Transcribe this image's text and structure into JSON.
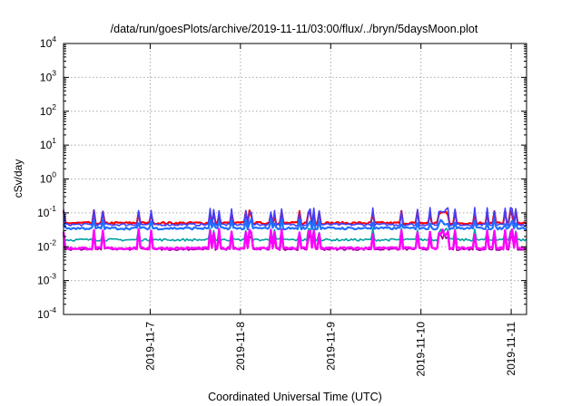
{
  "chart_data": {
    "type": "line",
    "title": "/data/run/goesPlots/archive/2019-11-11/03:00/flux/../bryn/5daysMoon.plot",
    "xlabel": "Coordinated Universal Time (UTC)",
    "ylabel": "cSv/day",
    "yscale": "log",
    "ylim_exp": [
      -4,
      4
    ],
    "y_ticks": [
      {
        "base": "10",
        "exp": "4"
      },
      {
        "base": "10",
        "exp": "3"
      },
      {
        "base": "10",
        "exp": "2"
      },
      {
        "base": "10",
        "exp": "1"
      },
      {
        "base": "10",
        "exp": "0"
      },
      {
        "base": "10",
        "exp": "-1"
      },
      {
        "base": "10",
        "exp": "-2"
      },
      {
        "base": "10",
        "exp": "-3"
      },
      {
        "base": "10",
        "exp": "-4"
      }
    ],
    "xlim_days": [
      6.04,
      11.17
    ],
    "x_ticks": [
      {
        "label": "2019-11-7",
        "day": 7
      },
      {
        "label": "2019-11-8",
        "day": 8
      },
      {
        "label": "2019-11-9",
        "day": 9
      },
      {
        "label": "2019-11-10",
        "day": 10
      },
      {
        "label": "2019-11-11",
        "day": 11
      }
    ],
    "grid": true,
    "legend": "none",
    "series_colors": [
      "#ff0000",
      "#4040ff",
      "#00a0a0",
      "#2070ff",
      "#a000a0",
      "#ff00ff"
    ],
    "series_levels": [
      0.05,
      0.045,
      0.016,
      0.035,
      0.0085,
      0.009
    ],
    "series_spike_levels": [
      0.1,
      0.12,
      0.03,
      0.055,
      0.02,
      0.028
    ]
  }
}
